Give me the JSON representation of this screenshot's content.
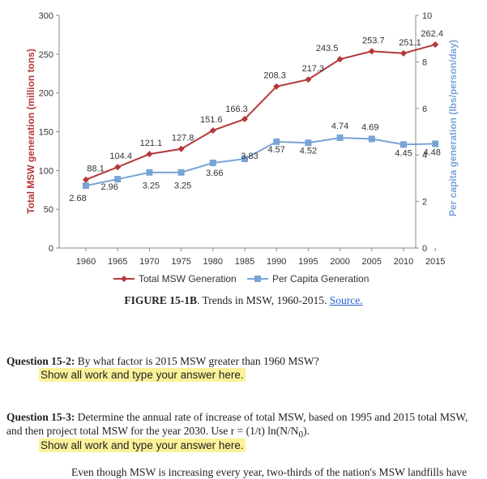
{
  "chart_data": {
    "type": "line",
    "x": [
      "1960",
      "1965",
      "1970",
      "1975",
      "1980",
      "1985",
      "1990",
      "1995",
      "2000",
      "2005",
      "2010",
      "2015"
    ],
    "series": [
      {
        "name": "Total MSW Generation",
        "axis": "left",
        "color": "#b5373a",
        "values": [
          88.1,
          104.4,
          121.1,
          127.8,
          151.6,
          166.3,
          208.3,
          217.3,
          243.5,
          253.7,
          251.1,
          262.4
        ],
        "labels": [
          "88.1",
          "104.4",
          "121.1",
          "127.8",
          "151.6",
          "166.3",
          "208.3",
          "217.3",
          "243.5",
          "253.7",
          "251.1",
          "262.4"
        ]
      },
      {
        "name": "Per Capita Generation",
        "axis": "right",
        "color": "#7aa3d6",
        "values": [
          2.68,
          2.96,
          3.25,
          3.25,
          3.66,
          3.83,
          4.57,
          4.52,
          4.74,
          4.69,
          4.45,
          4.48
        ],
        "labels": [
          "2.68",
          "2.96",
          "3.25",
          "3.25",
          "3.66",
          "3.83",
          "4.57",
          "4.52",
          "4.74",
          "4.69",
          "4.45",
          "4.48"
        ]
      }
    ],
    "ylabel": "Total MSW generation (million tons)",
    "y2label": "Per capita generation (lbs/person/day)",
    "ylim": [
      0,
      300
    ],
    "yticks": [
      "0",
      "50",
      "100",
      "150",
      "200",
      "250",
      "300"
    ],
    "y2lim": [
      0,
      10
    ],
    "y2ticks": [
      "0",
      "2",
      "4",
      "6",
      "8",
      "10"
    ],
    "ylabel_color": "#b5373a",
    "y2label_color": "#7aa3d6",
    "legend_position": "bottom",
    "grid": false
  },
  "caption": {
    "figure": "FIGURE 15-1B",
    "text": ". Trends in MSW, 1960-2015. ",
    "source": "Source."
  },
  "q2": {
    "num": "Question 15-2:",
    "text": " By what factor is 2015 MSW greater than 1960 MSW?",
    "answer": "Show all work and type your answer here."
  },
  "q3": {
    "num": "Question 15-3:",
    "text": " Determine the annual rate of increase of total MSW, based on 1995 and 2015 total MSW, and then project total MSW for the year 2030. Use r = (1/t) ln(N/N",
    "sub": "0",
    "text_end": ").",
    "answer": "Show all work and type your answer here."
  },
  "cutoff_text": "Even though MSW is increasing every year, two-thirds of the nation's MSW landfills have"
}
